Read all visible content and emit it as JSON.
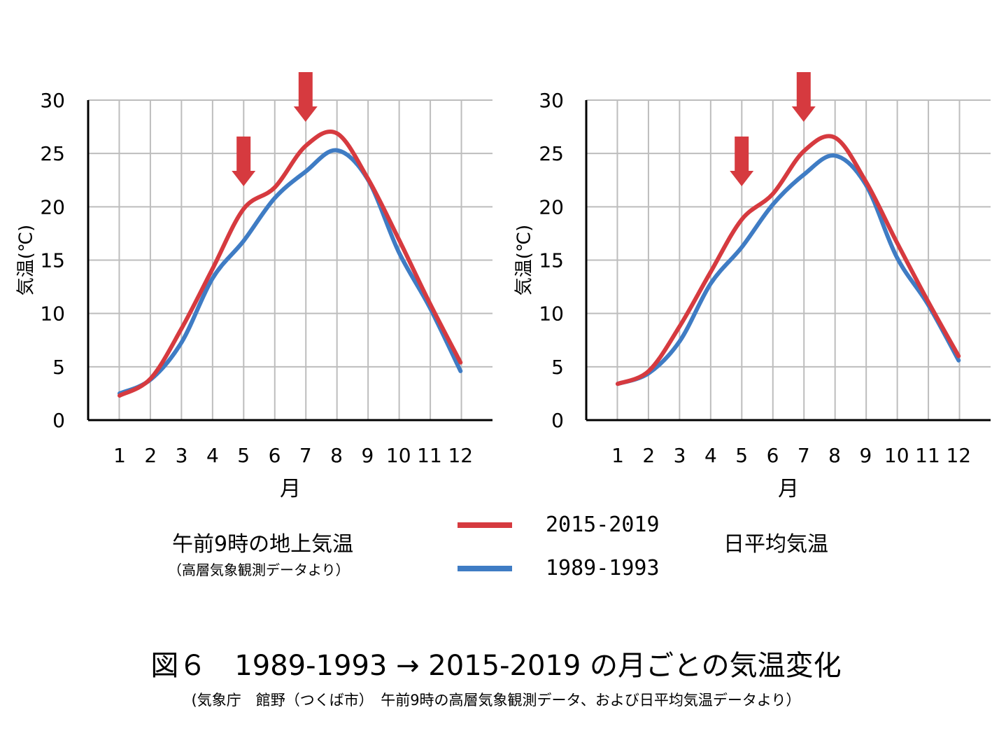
{
  "legend": {
    "series": [
      {
        "name": "2015-2019",
        "color": "#d63a3f"
      },
      {
        "name": "1989-1993",
        "color": "#3f7cc4"
      }
    ]
  },
  "left_panel": {
    "caption": "午前9時の地上気温",
    "subcaption": "（高層気象観測データより）"
  },
  "right_panel": {
    "caption": "日平均気温"
  },
  "figure": {
    "title": "図６　1989-1993 → 2015-2019 の月ごとの気温変化",
    "source": "(気象庁　館野（つくば市）　午前9時の高層気象観測データ、および日平均気温データより）"
  },
  "chart_data": [
    {
      "type": "line",
      "title": "",
      "xlabel": "月",
      "ylabel": "気温(℃)",
      "x": [
        1,
        2,
        3,
        4,
        5,
        6,
        7,
        8,
        9,
        10,
        11,
        12
      ],
      "x_ticks": [
        "1",
        "2",
        "3",
        "4",
        "5",
        "6",
        "7",
        "8",
        "9",
        "10",
        "11",
        "12"
      ],
      "y_ticks": [
        "0",
        "5",
        "10",
        "15",
        "20",
        "25",
        "30"
      ],
      "ylim": [
        0,
        30
      ],
      "grid": true,
      "series": [
        {
          "name": "2015-2019",
          "color": "#d63a3f",
          "values": [
            2.3,
            3.9,
            8.6,
            14.2,
            19.8,
            21.8,
            25.7,
            26.9,
            22.7,
            17.0,
            11.0,
            5.4
          ]
        },
        {
          "name": "1989-1993",
          "color": "#3f7cc4",
          "values": [
            2.5,
            3.8,
            7.3,
            13.3,
            16.8,
            20.8,
            23.3,
            25.3,
            22.6,
            15.8,
            10.6,
            4.6
          ]
        }
      ],
      "arrows_at_months": [
        5,
        7
      ]
    },
    {
      "type": "line",
      "title": "",
      "xlabel": "月",
      "ylabel": "気温(℃)",
      "x": [
        1,
        2,
        3,
        4,
        5,
        6,
        7,
        8,
        9,
        10,
        11,
        12
      ],
      "x_ticks": [
        "1",
        "2",
        "3",
        "4",
        "5",
        "6",
        "7",
        "8",
        "9",
        "10",
        "11",
        "12"
      ],
      "y_ticks": [
        "0",
        "5",
        "10",
        "15",
        "20",
        "25",
        "30"
      ],
      "ylim": [
        0,
        30
      ],
      "grid": true,
      "series": [
        {
          "name": "2015-2019",
          "color": "#d63a3f",
          "values": [
            3.4,
            4.6,
            8.8,
            13.9,
            18.8,
            21.2,
            25.2,
            26.5,
            22.4,
            16.7,
            11.2,
            6.0
          ]
        },
        {
          "name": "1989-1993",
          "color": "#3f7cc4",
          "values": [
            3.4,
            4.4,
            7.4,
            12.8,
            16.2,
            20.2,
            23.0,
            24.8,
            22.1,
            15.3,
            10.9,
            5.6
          ]
        }
      ],
      "arrows_at_months": [
        5,
        7
      ]
    }
  ]
}
